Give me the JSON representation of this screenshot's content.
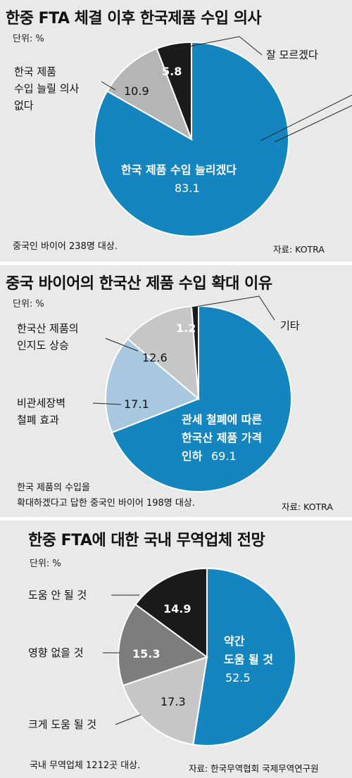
{
  "colors": {
    "blue": "#1485bf",
    "lightblue": "#a8c8e0",
    "gray": "#b5b5b5",
    "darkgray": "#7d7d7d",
    "lightgray": "#c6c6c6",
    "black": "#1a1a1a",
    "background": "#e9e9ea"
  },
  "chart_data": [
    {
      "type": "pie",
      "title": "한중 FTA 체결 이후 한국제품 수입 의사",
      "unit": "단위: %",
      "slices": [
        {
          "label": "한국 제품 수입 늘리겠다",
          "value": 83.1,
          "value_text": "83.1",
          "color": "#1485bf"
        },
        {
          "label": "한국 제품 수입 늘릴 의사 없다",
          "value": 10.9,
          "value_text": "10.9",
          "color": "#b5b5b5"
        },
        {
          "label": "잘 모르겠다",
          "value": 5.8,
          "value_text": "5.8",
          "color": "#1a1a1a"
        }
      ],
      "note": "중국인 바이어 238명 대상.",
      "source": "자료: KOTRA"
    },
    {
      "type": "pie",
      "title": "중국 바이어의 한국산 제품 수입 확대 이유",
      "unit": "단위: %",
      "slices": [
        {
          "label": "관세 철폐에 따른 한국산 제품 가격 인하",
          "value": 69.1,
          "value_text": "69.1",
          "color": "#1485bf"
        },
        {
          "label": "비관세장벽 철폐 효과",
          "value": 17.1,
          "value_text": "17.1",
          "color": "#a8c8e0"
        },
        {
          "label": "한국산 제품의 인지도 상승",
          "value": 12.6,
          "value_text": "12.6",
          "color": "#c6c6c6"
        },
        {
          "label": "기타",
          "value": 1.2,
          "value_text": "1.2",
          "color": "#1a1a1a"
        }
      ],
      "note_line1": "한국 제품의 수입을",
      "note_line2": "확대하겠다고 답한 중국인 바이어 198명 대상.",
      "source": "자료: KOTRA"
    },
    {
      "type": "pie",
      "title": "한중 FTA에 대한 국내 무역업체 전망",
      "unit": "단위: %",
      "slices": [
        {
          "label": "약간 도움 될 것",
          "value": 52.5,
          "value_text": "52.5",
          "color": "#1485bf"
        },
        {
          "label": "크게 도움 될 것",
          "value": 17.3,
          "value_text": "17.3",
          "color": "#c6c6c6"
        },
        {
          "label": "영향 없을 것",
          "value": 15.3,
          "value_text": "15.3",
          "color": "#7d7d7d"
        },
        {
          "label": "도움 안 될 것",
          "value": 14.9,
          "value_text": "14.9",
          "color": "#1a1a1a"
        }
      ],
      "note": "국내 무역업체 1212곳 대상.",
      "source": "자료: 한국무역협회 국제무역연구원"
    }
  ],
  "labels": {
    "p1": {
      "other_line1": "한국 제품",
      "other_line2": "수입 늘릴 의사",
      "other_line3": "없다",
      "dontknow": "잘 모르겠다",
      "main": "한국 제품 수입 늘리겠다"
    },
    "p2": {
      "awareness_line1": "한국산 제품의",
      "awareness_line2": "인지도 상승",
      "nontariff_line1": "비관세장벽",
      "nontariff_line2": "철폐 효과",
      "etc": "기타",
      "main_line1": "관세 철폐에 따른",
      "main_line2": "한국산 제품 가격",
      "main_line3": "인하"
    },
    "p3": {
      "nohelp": "도움 안 될 것",
      "noeffect": "영향 없을 것",
      "bighelp": "크게 도움 될 것",
      "main_line1": "약간",
      "main_line2": "도움 될 것"
    }
  }
}
